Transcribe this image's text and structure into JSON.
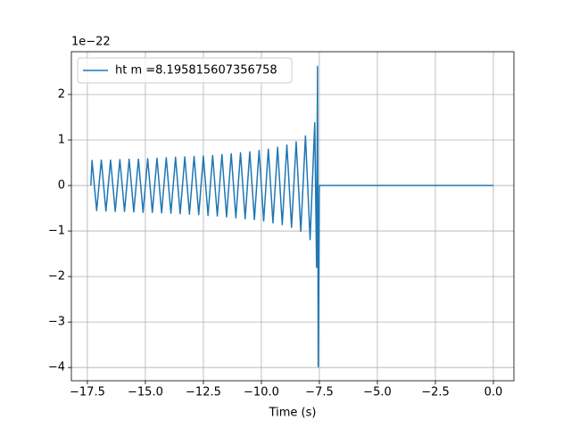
{
  "chart_data": {
    "type": "line",
    "offset_text": "1e−22",
    "x_label": "Time (s)",
    "series": [
      {
        "name": "ht m =8.195815607356758",
        "color": "#1f77b4",
        "x": [
          -17.35,
          -17.3,
          -17.1,
          -16.9,
          -16.7,
          -16.5,
          -16.3,
          -16.1,
          -15.9,
          -15.7,
          -15.5,
          -15.3,
          -15.1,
          -14.9,
          -14.7,
          -14.5,
          -14.3,
          -14.1,
          -13.9,
          -13.7,
          -13.5,
          -13.3,
          -13.1,
          -12.9,
          -12.7,
          -12.5,
          -12.3,
          -12.1,
          -11.9,
          -11.7,
          -11.5,
          -11.3,
          -11.1,
          -10.9,
          -10.7,
          -10.5,
          -10.3,
          -10.1,
          -9.9,
          -9.7,
          -9.5,
          -9.3,
          -9.1,
          -8.9,
          -8.7,
          -8.5,
          -8.3,
          -8.1,
          -7.9,
          -7.7,
          -7.62,
          -7.58,
          -7.55,
          -7.5,
          0
        ],
        "values": [
          0,
          0.55,
          -0.55,
          0.56,
          -0.56,
          0.56,
          -0.57,
          0.57,
          -0.57,
          0.58,
          -0.58,
          0.58,
          -0.59,
          0.59,
          -0.59,
          0.6,
          -0.6,
          0.61,
          -0.61,
          0.62,
          -0.62,
          0.63,
          -0.63,
          0.64,
          -0.64,
          0.65,
          -0.66,
          0.66,
          -0.67,
          0.68,
          -0.69,
          0.7,
          -0.71,
          0.72,
          -0.73,
          0.74,
          -0.75,
          0.77,
          -0.78,
          0.8,
          -0.82,
          0.84,
          -0.86,
          0.89,
          -0.92,
          0.96,
          -1.01,
          1.09,
          -1.19,
          1.38,
          -1.8,
          2.62,
          -3.98,
          0,
          0
        ]
      }
    ],
    "xlim": [
      -18.19,
      0.885
    ],
    "ylim": [
      -4.29,
      2.94
    ],
    "xticks": [
      {
        "value": -17.5,
        "label": "−17.5"
      },
      {
        "value": -15,
        "label": "−15.0"
      },
      {
        "value": -12.5,
        "label": "−12.5"
      },
      {
        "value": -10,
        "label": "−10.0"
      },
      {
        "value": -7.5,
        "label": "−7.5"
      },
      {
        "value": -5,
        "label": "−5.0"
      },
      {
        "value": -2.5,
        "label": "−2.5"
      },
      {
        "value": 0,
        "label": "0.0"
      }
    ],
    "yticks": [
      {
        "value": -4,
        "label": "−4"
      },
      {
        "value": -3,
        "label": "−3"
      },
      {
        "value": -2,
        "label": "−2"
      },
      {
        "value": -1,
        "label": "−1"
      },
      0,
      1,
      2
    ],
    "grid": true,
    "legend": "upper left"
  }
}
